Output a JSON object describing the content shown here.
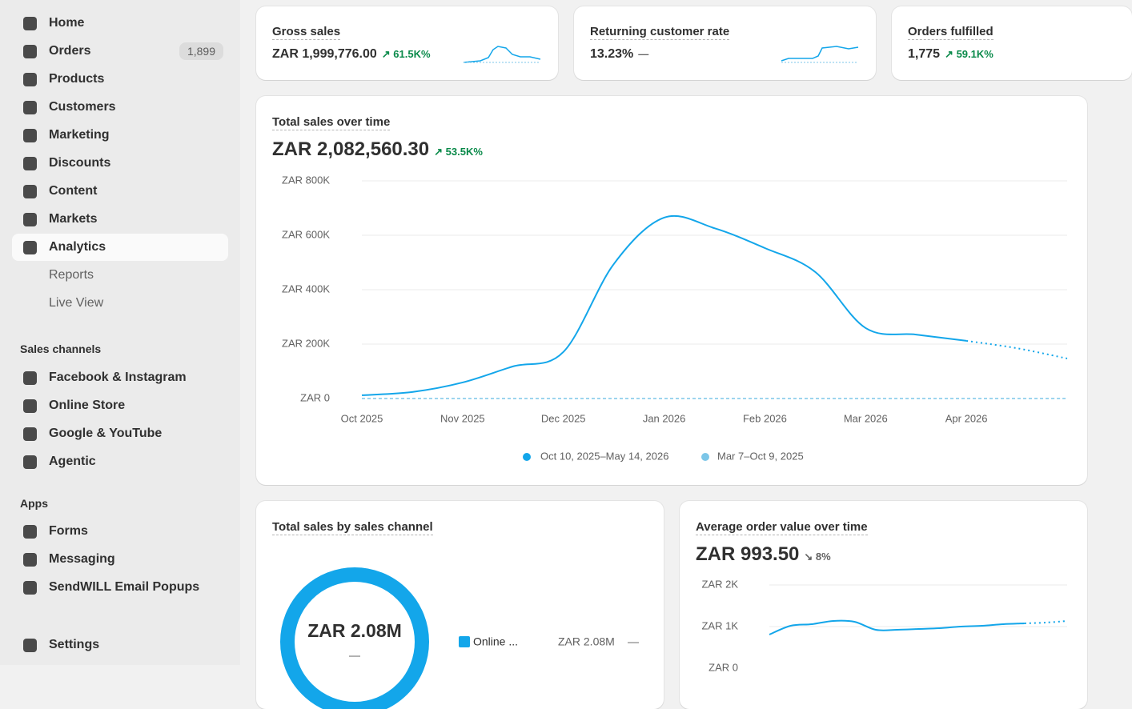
{
  "sidebar": {
    "nav": [
      "Home",
      "Orders",
      "Products",
      "Customers",
      "Marketing",
      "Discounts",
      "Content",
      "Markets",
      "Analytics"
    ],
    "orders_badge": "1,899",
    "analytics_sub": [
      "Reports",
      "Live View"
    ],
    "sales_channels": {
      "title": "Sales channels",
      "items": [
        "Facebook & Instagram",
        "Online Store",
        "Google & YouTube",
        "Agentic"
      ]
    },
    "apps": {
      "title": "Apps",
      "items": [
        "Forms",
        "Messaging",
        "SendWILL Email Popups"
      ]
    },
    "settings": "Settings"
  },
  "metrics": [
    {
      "title": "Gross sales",
      "value": "ZAR 1,999,776.00",
      "change": "61.5K%"
    },
    {
      "title": "Returning customer rate",
      "value": "13.23%",
      "change": "—"
    },
    {
      "title": "Orders fulfilled",
      "value": "1,775",
      "change": "59.1K%"
    }
  ],
  "main_chart": {
    "type": "line",
    "title": "Total sales over time",
    "value": "ZAR 2,082,560.30",
    "change": "53.5K%",
    "x": [
      0,
      0.5,
      1,
      1.5,
      2,
      2.5,
      3,
      3.5,
      4,
      4.5,
      5,
      5.5,
      6,
      6.5,
      7
    ],
    "series": [
      {
        "name": "Oct 10, 2025–May 14, 2026",
        "color": "#13a6ea",
        "values": [
          12000,
          24000,
          59000,
          118000,
          171000,
          494000,
          665000,
          626000,
          553000,
          465000,
          259000,
          235000,
          212000,
          185000,
          147000
        ]
      },
      {
        "name": "Mar 7–Oct 9, 2025",
        "color": "#7cc6e8",
        "values": [
          0,
          0,
          0,
          0,
          0,
          0,
          0,
          0,
          0,
          0,
          0,
          0,
          0,
          0,
          0
        ]
      }
    ],
    "xlim": [
      0,
      7
    ],
    "xticks": [
      {
        "value": 0,
        "label": "Oct 2025"
      },
      {
        "value": 1,
        "label": "Nov 2025"
      },
      {
        "value": 2,
        "label": "Dec 2025"
      },
      {
        "value": 3,
        "label": "Jan 2026"
      },
      {
        "value": 4,
        "label": "Feb 2026"
      },
      {
        "value": 5,
        "label": "Mar 2026"
      },
      {
        "value": 6,
        "label": "Apr 2026"
      }
    ],
    "ylim": [
      0,
      800000
    ],
    "yticks": [
      {
        "value": 0,
        "label": "ZAR 0"
      },
      {
        "value": 200000,
        "label": "ZAR 200K"
      },
      {
        "value": 400000,
        "label": "ZAR 400K"
      },
      {
        "value": 600000,
        "label": "ZAR 600K"
      },
      {
        "value": 800000,
        "label": "ZAR 800K"
      }
    ],
    "grid": true
  },
  "channel_card": {
    "title": "Total sales by sales channel",
    "total": "ZAR 2.08M",
    "total_change": "—",
    "legend": [
      {
        "name": "Online ...",
        "value": "ZAR 2.08M",
        "change": "—",
        "color": "#13a6ea"
      }
    ]
  },
  "aov_chart": {
    "type": "line",
    "title": "Average order value over time",
    "value": "ZAR 993.50",
    "change": "8%",
    "x": [
      0,
      0.5,
      1,
      1.5,
      2,
      2.5,
      3,
      3.5,
      4,
      4.5,
      5,
      5.5,
      6,
      6.5,
      7
    ],
    "series": [
      {
        "color": "#13a6ea",
        "values": [
          808,
          1019,
          1058,
          1135,
          1115,
          923,
          923,
          942,
          962,
          1000,
          1019,
          1058,
          1077,
          1096,
          1135
        ]
      }
    ],
    "xlim": [
      0,
      7
    ],
    "ylim": [
      0,
      2000
    ],
    "yticks": [
      {
        "value": 0,
        "label": "ZAR 0"
      },
      {
        "value": 1000,
        "label": "ZAR 1K"
      },
      {
        "value": 2000,
        "label": "ZAR 2K"
      }
    ],
    "grid": true
  }
}
